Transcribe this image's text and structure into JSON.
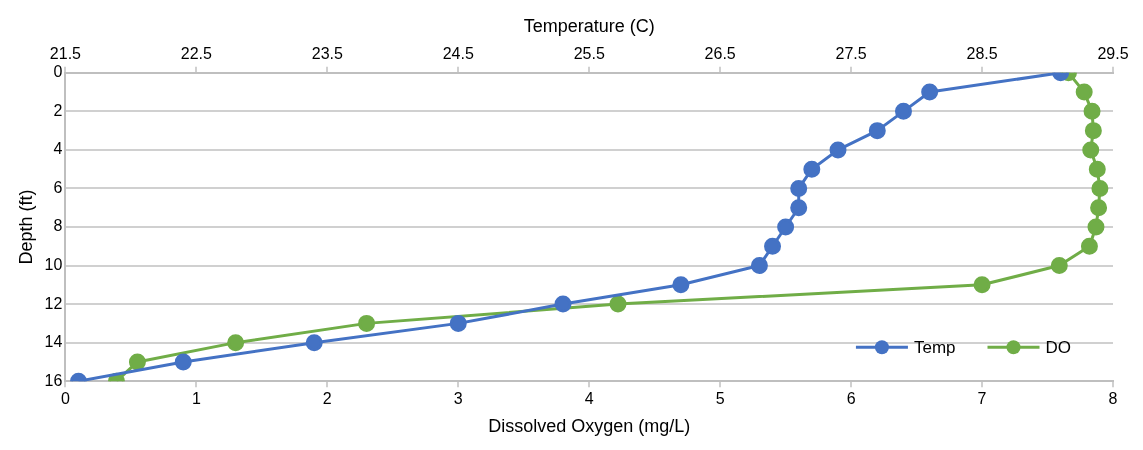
{
  "chart_data": {
    "type": "line",
    "xlabel": "Dissolved Oxygen (mg/L)",
    "x2label": "Temperature (C)",
    "ylabel": "Depth (ft)",
    "xlim": [
      0,
      8
    ],
    "xticks": [
      0,
      1,
      2,
      3,
      4,
      5,
      6,
      7,
      8
    ],
    "x2lim": [
      21.5,
      29.5
    ],
    "x2ticks": [
      21.5,
      22.5,
      23.5,
      24.5,
      25.5,
      26.5,
      27.5,
      28.5,
      29.5
    ],
    "ylim": [
      16,
      0
    ],
    "yticks": [
      0,
      2,
      4,
      6,
      8,
      10,
      12,
      14,
      16
    ],
    "grid": "y",
    "legend": "bottom right",
    "marker": "circle",
    "line_style": "solid",
    "series": [
      {
        "name": "Temp",
        "color": "#4472c4",
        "axis": "x2",
        "x": [
          29.1,
          28.1,
          27.9,
          27.7,
          27.4,
          27.2,
          27.1,
          27.1,
          27.0,
          26.9,
          26.8,
          26.2,
          25.3,
          24.5,
          23.4,
          22.4,
          21.6
        ],
        "values": [
          0,
          1,
          2,
          3,
          4,
          5,
          6,
          7,
          8,
          9,
          10,
          11,
          12,
          13,
          14,
          15,
          16
        ]
      },
      {
        "name": "DO",
        "color": "#70ad47",
        "x": [
          7.66,
          7.78,
          7.84,
          7.85,
          7.83,
          7.88,
          7.9,
          7.89,
          7.87,
          7.82,
          7.59,
          7.0,
          4.22,
          2.3,
          1.3,
          0.55,
          0.39
        ],
        "values": [
          0,
          1,
          2,
          3,
          4,
          5,
          6,
          7,
          8,
          9,
          10,
          11,
          12,
          13,
          14,
          15,
          16
        ]
      }
    ]
  }
}
